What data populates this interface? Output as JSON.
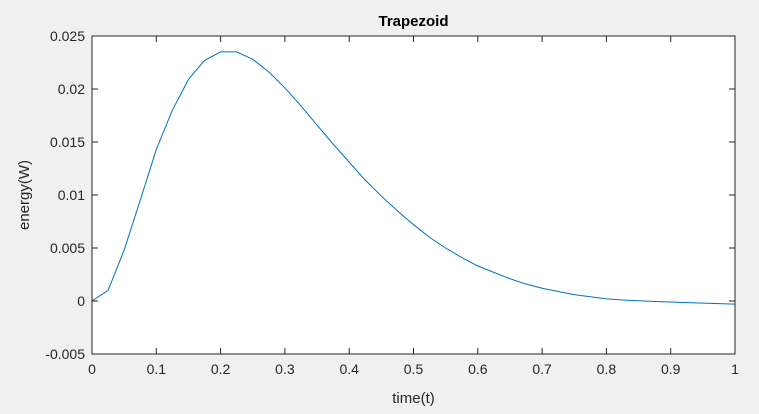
{
  "chart_data": {
    "type": "line",
    "title": "Trapezoid",
    "xlabel": "time(t)",
    "ylabel": "energy(W)",
    "xlim": [
      0,
      1
    ],
    "ylim": [
      -0.005,
      0.025
    ],
    "xticks": [
      0,
      0.1,
      0.2,
      0.3,
      0.4,
      0.5,
      0.6,
      0.7,
      0.8,
      0.9,
      1
    ],
    "xtick_labels": [
      "0",
      "0.1",
      "0.2",
      "0.3",
      "0.4",
      "0.5",
      "0.6",
      "0.7",
      "0.8",
      "0.9",
      "1"
    ],
    "yticks": [
      -0.005,
      0,
      0.005,
      0.01,
      0.015,
      0.02,
      0.025
    ],
    "ytick_labels": [
      "-0.005",
      "0",
      "0.005",
      "0.01",
      "0.015",
      "0.02",
      "0.025"
    ],
    "grid": false,
    "line_color": "#0072BD",
    "background": "#ffffff",
    "series": [
      {
        "x": [
          0,
          0.025,
          0.05,
          0.075,
          0.1,
          0.125,
          0.15,
          0.175,
          0.2,
          0.225,
          0.25,
          0.275,
          0.3,
          0.325,
          0.35,
          0.375,
          0.4,
          0.425,
          0.45,
          0.475,
          0.5,
          0.525,
          0.55,
          0.575,
          0.6,
          0.625,
          0.65,
          0.675,
          0.7,
          0.725,
          0.75,
          0.775,
          0.8,
          0.825,
          0.85,
          0.875,
          0.9,
          0.925,
          0.95,
          0.975,
          1
        ],
        "y": [
          0,
          0.001,
          0.0048,
          0.0095,
          0.0143,
          0.018,
          0.0209,
          0.0227,
          0.0235,
          0.0235,
          0.0228,
          0.0216,
          0.0201,
          0.0184,
          0.0166,
          0.0148,
          0.0131,
          0.0114,
          0.0099,
          0.0085,
          0.0072,
          0.006,
          0.005,
          0.0041,
          0.0033,
          0.0027,
          0.0021,
          0.0016,
          0.0012,
          0.0009,
          0.0006,
          0.0004,
          0.0002,
          0.0001,
          2e-05,
          -5e-05,
          -0.0001,
          -0.00015,
          -0.0002,
          -0.00025,
          -0.0003
        ]
      }
    ]
  }
}
